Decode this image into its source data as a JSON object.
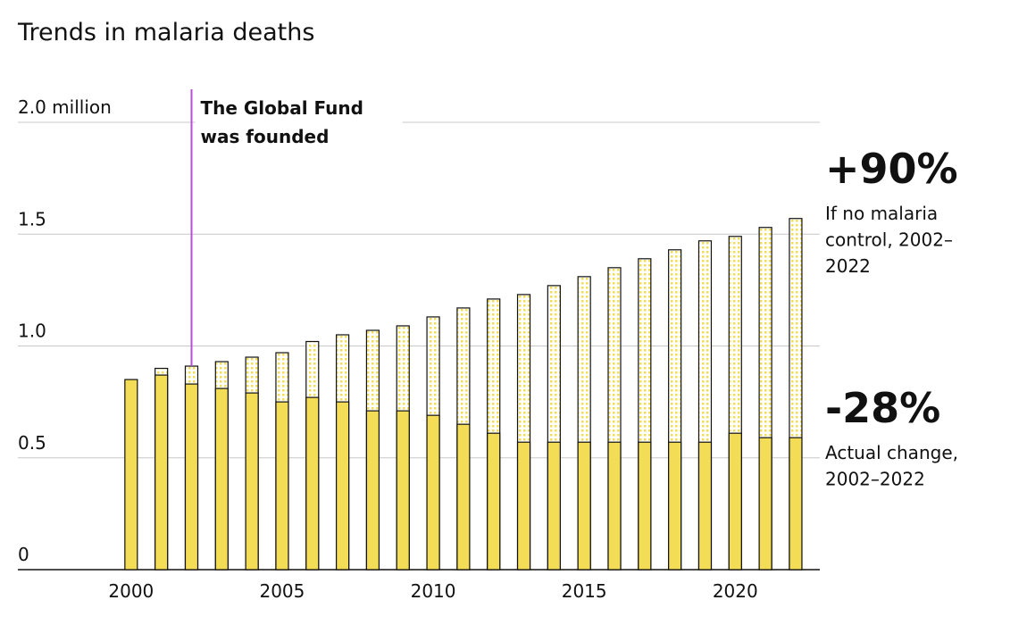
{
  "chart_data": {
    "type": "bar",
    "title": "Trends in malaria deaths",
    "x": [
      2000,
      2001,
      2002,
      2003,
      2004,
      2005,
      2006,
      2007,
      2008,
      2009,
      2010,
      2011,
      2012,
      2013,
      2014,
      2015,
      2016,
      2017,
      2018,
      2019,
      2020,
      2021,
      2022
    ],
    "xlim": [
      1996.25,
      2022.8
    ],
    "xticks": [
      2000,
      2005,
      2010,
      2015,
      2020
    ],
    "ylim": [
      0,
      2
    ],
    "yticks": [
      0,
      0.5,
      {
        "value": 1,
        "label": "1.0"
      },
      1.5,
      {
        "value": 2,
        "label": "2.0 million"
      }
    ],
    "grid": true,
    "series": [
      {
        "color": "#f3dc56",
        "pattern": "dotted",
        "values": [
          null,
          0.9,
          0.91,
          0.93,
          0.95,
          0.97,
          1.02,
          1.05,
          1.07,
          1.09,
          1.13,
          1.17,
          1.21,
          1.23,
          1.27,
          1.31,
          1.35,
          1.39,
          1.43,
          1.47,
          1.49,
          1.53,
          1.57
        ]
      },
      {
        "color": "#f3dc56",
        "pattern": "solid",
        "values": [
          0.85,
          0.87,
          0.83,
          0.81,
          0.79,
          0.75,
          0.77,
          0.75,
          0.71,
          0.71,
          0.69,
          0.65,
          0.61,
          0.57,
          0.57,
          0.57,
          0.57,
          0.57,
          0.57,
          0.57,
          0.61,
          0.59,
          0.59
        ]
      }
    ],
    "annotation": {
      "x": 2002,
      "color": "#b84fd6",
      "lines": [
        "The Global Fund",
        "was founded"
      ]
    },
    "callouts": [
      {
        "value": "+90%",
        "lines": [
          "If no malaria",
          "control, 2002–",
          "2022"
        ]
      },
      {
        "value": "-28%",
        "lines": [
          "Actual change,",
          "2002–2022"
        ]
      }
    ]
  }
}
